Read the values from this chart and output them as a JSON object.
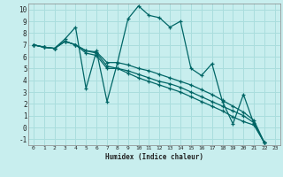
{
  "title": "",
  "xlabel": "Humidex (Indice chaleur)",
  "bg_color": "#c8eeee",
  "grid_color": "#aadddd",
  "line_color": "#006666",
  "xlim": [
    -0.5,
    23.5
  ],
  "ylim": [
    -1.5,
    10.5
  ],
  "ytick_vals": [
    -1,
    0,
    1,
    2,
    3,
    4,
    5,
    6,
    7,
    8,
    9,
    10
  ],
  "xtick_vals": [
    0,
    1,
    2,
    3,
    4,
    5,
    6,
    7,
    8,
    9,
    10,
    11,
    12,
    13,
    14,
    15,
    16,
    17,
    18,
    19,
    20,
    21,
    22,
    23
  ],
  "series": [
    [
      7.0,
      6.8,
      6.7,
      7.5,
      8.5,
      3.3,
      6.5,
      2.2,
      5.5,
      9.2,
      10.3,
      9.5,
      9.3,
      8.5,
      9.0,
      5.0,
      4.4,
      5.4,
      2.2,
      0.3,
      2.8,
      0.3,
      -1.3
    ],
    [
      7.0,
      6.8,
      6.7,
      7.3,
      7.0,
      6.5,
      6.4,
      5.5,
      5.5,
      5.3,
      5.0,
      4.8,
      4.5,
      4.2,
      3.9,
      3.6,
      3.2,
      2.8,
      2.3,
      1.8,
      1.3,
      0.6,
      -1.3
    ],
    [
      7.0,
      6.8,
      6.7,
      7.3,
      7.0,
      6.5,
      6.3,
      5.2,
      5.0,
      4.8,
      4.5,
      4.2,
      3.9,
      3.7,
      3.4,
      3.0,
      2.6,
      2.2,
      1.8,
      1.4,
      1.0,
      0.4,
      -1.3
    ],
    [
      7.0,
      6.8,
      6.7,
      7.3,
      7.0,
      6.3,
      6.1,
      5.0,
      5.0,
      4.6,
      4.2,
      3.9,
      3.6,
      3.3,
      3.0,
      2.6,
      2.2,
      1.8,
      1.4,
      0.9,
      0.5,
      0.2,
      -1.3
    ]
  ]
}
